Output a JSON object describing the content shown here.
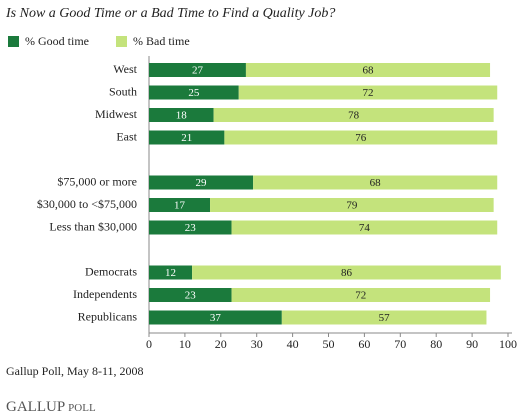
{
  "chart_data": {
    "type": "stacked-barh",
    "title": "Is Now a Good Time or a Bad Time to Find a Quality Job?",
    "categories": [
      "West",
      "South",
      "Midwest",
      "East",
      null,
      "$75,000 or more",
      "$30,000 to <$75,000",
      "Less than $30,000",
      null,
      "Democrats",
      "Independents",
      "Republicans"
    ],
    "series": [
      {
        "name": "% Good time",
        "color": "#1b7a3c",
        "values": [
          27,
          25,
          18,
          21,
          null,
          29,
          17,
          23,
          null,
          12,
          23,
          37
        ]
      },
      {
        "name": "% Bad time",
        "color": "#c4e37c",
        "values": [
          68,
          72,
          78,
          76,
          null,
          68,
          79,
          74,
          null,
          86,
          72,
          57
        ]
      }
    ],
    "xlim": [
      0,
      100
    ],
    "xticks": [
      0,
      10,
      20,
      30,
      40,
      50,
      60,
      70,
      80,
      90,
      100
    ],
    "source": "Gallup Poll, May 8-11, 2008",
    "logo_main": "GALLUP",
    "logo_sub": "POLL"
  }
}
